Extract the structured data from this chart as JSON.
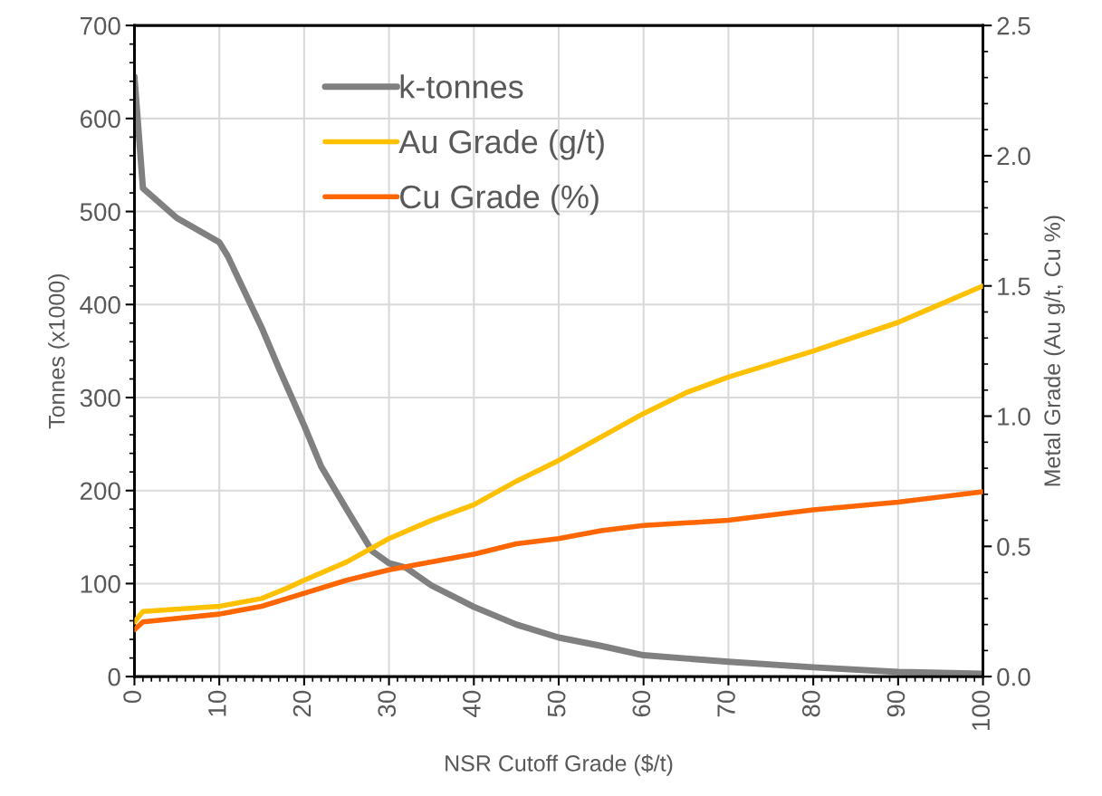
{
  "chart_data": {
    "type": "line",
    "xlabel": "NSR Cutoff Grade ($/t)",
    "ylabel": "Tonnes (x1000)",
    "y2label": "Metal Grade (Au g/t, Cu %)",
    "xlim": [
      0,
      100
    ],
    "xticks": [
      0,
      10,
      20,
      30,
      40,
      50,
      60,
      70,
      80,
      90,
      100
    ],
    "ylim": [
      0,
      700
    ],
    "yticks": [
      0,
      100,
      200,
      300,
      400,
      500,
      600,
      700
    ],
    "y2lim": [
      0,
      2.5
    ],
    "y2ticks": [
      {
        "value": 0,
        "label": "0.0"
      },
      {
        "value": 0.5,
        "label": "0.5"
      },
      {
        "value": 1,
        "label": "1.0"
      },
      {
        "value": 1.5,
        "label": "1.5"
      },
      {
        "value": 2,
        "label": "2.0"
      },
      {
        "value": 2.5,
        "label": "2.5"
      }
    ],
    "grid": true,
    "legend": "top left",
    "marker": "none",
    "line_style": "solid",
    "series": [
      {
        "name": "k-tonnes",
        "color": "#808080",
        "x": [
          0,
          1,
          5,
          10,
          11,
          15,
          17,
          20,
          22,
          25,
          28,
          30,
          32,
          35,
          40,
          45,
          50,
          55,
          60,
          70,
          80,
          90,
          100
        ],
        "values": [
          645,
          525,
          493,
          467,
          452,
          375,
          332,
          270,
          226,
          180,
          135,
          122,
          117,
          98,
          75,
          56,
          42,
          33,
          23,
          16,
          10,
          5,
          3
        ]
      },
      {
        "name": "Au Grade (g/t)",
        "color": "#ffc000",
        "axis": "y2",
        "x": [
          0,
          1,
          10,
          15,
          18,
          20,
          25,
          30,
          35,
          40,
          45,
          50,
          60,
          65,
          70,
          80,
          90,
          100
        ],
        "values": [
          0.21,
          0.25,
          0.27,
          0.3,
          0.34,
          0.37,
          0.44,
          0.53,
          0.6,
          0.66,
          0.75,
          0.83,
          1.01,
          1.09,
          1.15,
          1.25,
          1.36,
          1.5
        ]
      },
      {
        "name": "Cu Grade (%)",
        "color": "#ff6600",
        "axis": "y2",
        "x": [
          0,
          1,
          10,
          15,
          20,
          25,
          30,
          35,
          40,
          45,
          50,
          55,
          60,
          70,
          80,
          90,
          100
        ],
        "values": [
          0.18,
          0.21,
          0.24,
          0.27,
          0.32,
          0.37,
          0.41,
          0.44,
          0.47,
          0.51,
          0.53,
          0.56,
          0.58,
          0.6,
          0.64,
          0.67,
          0.71
        ]
      }
    ]
  }
}
